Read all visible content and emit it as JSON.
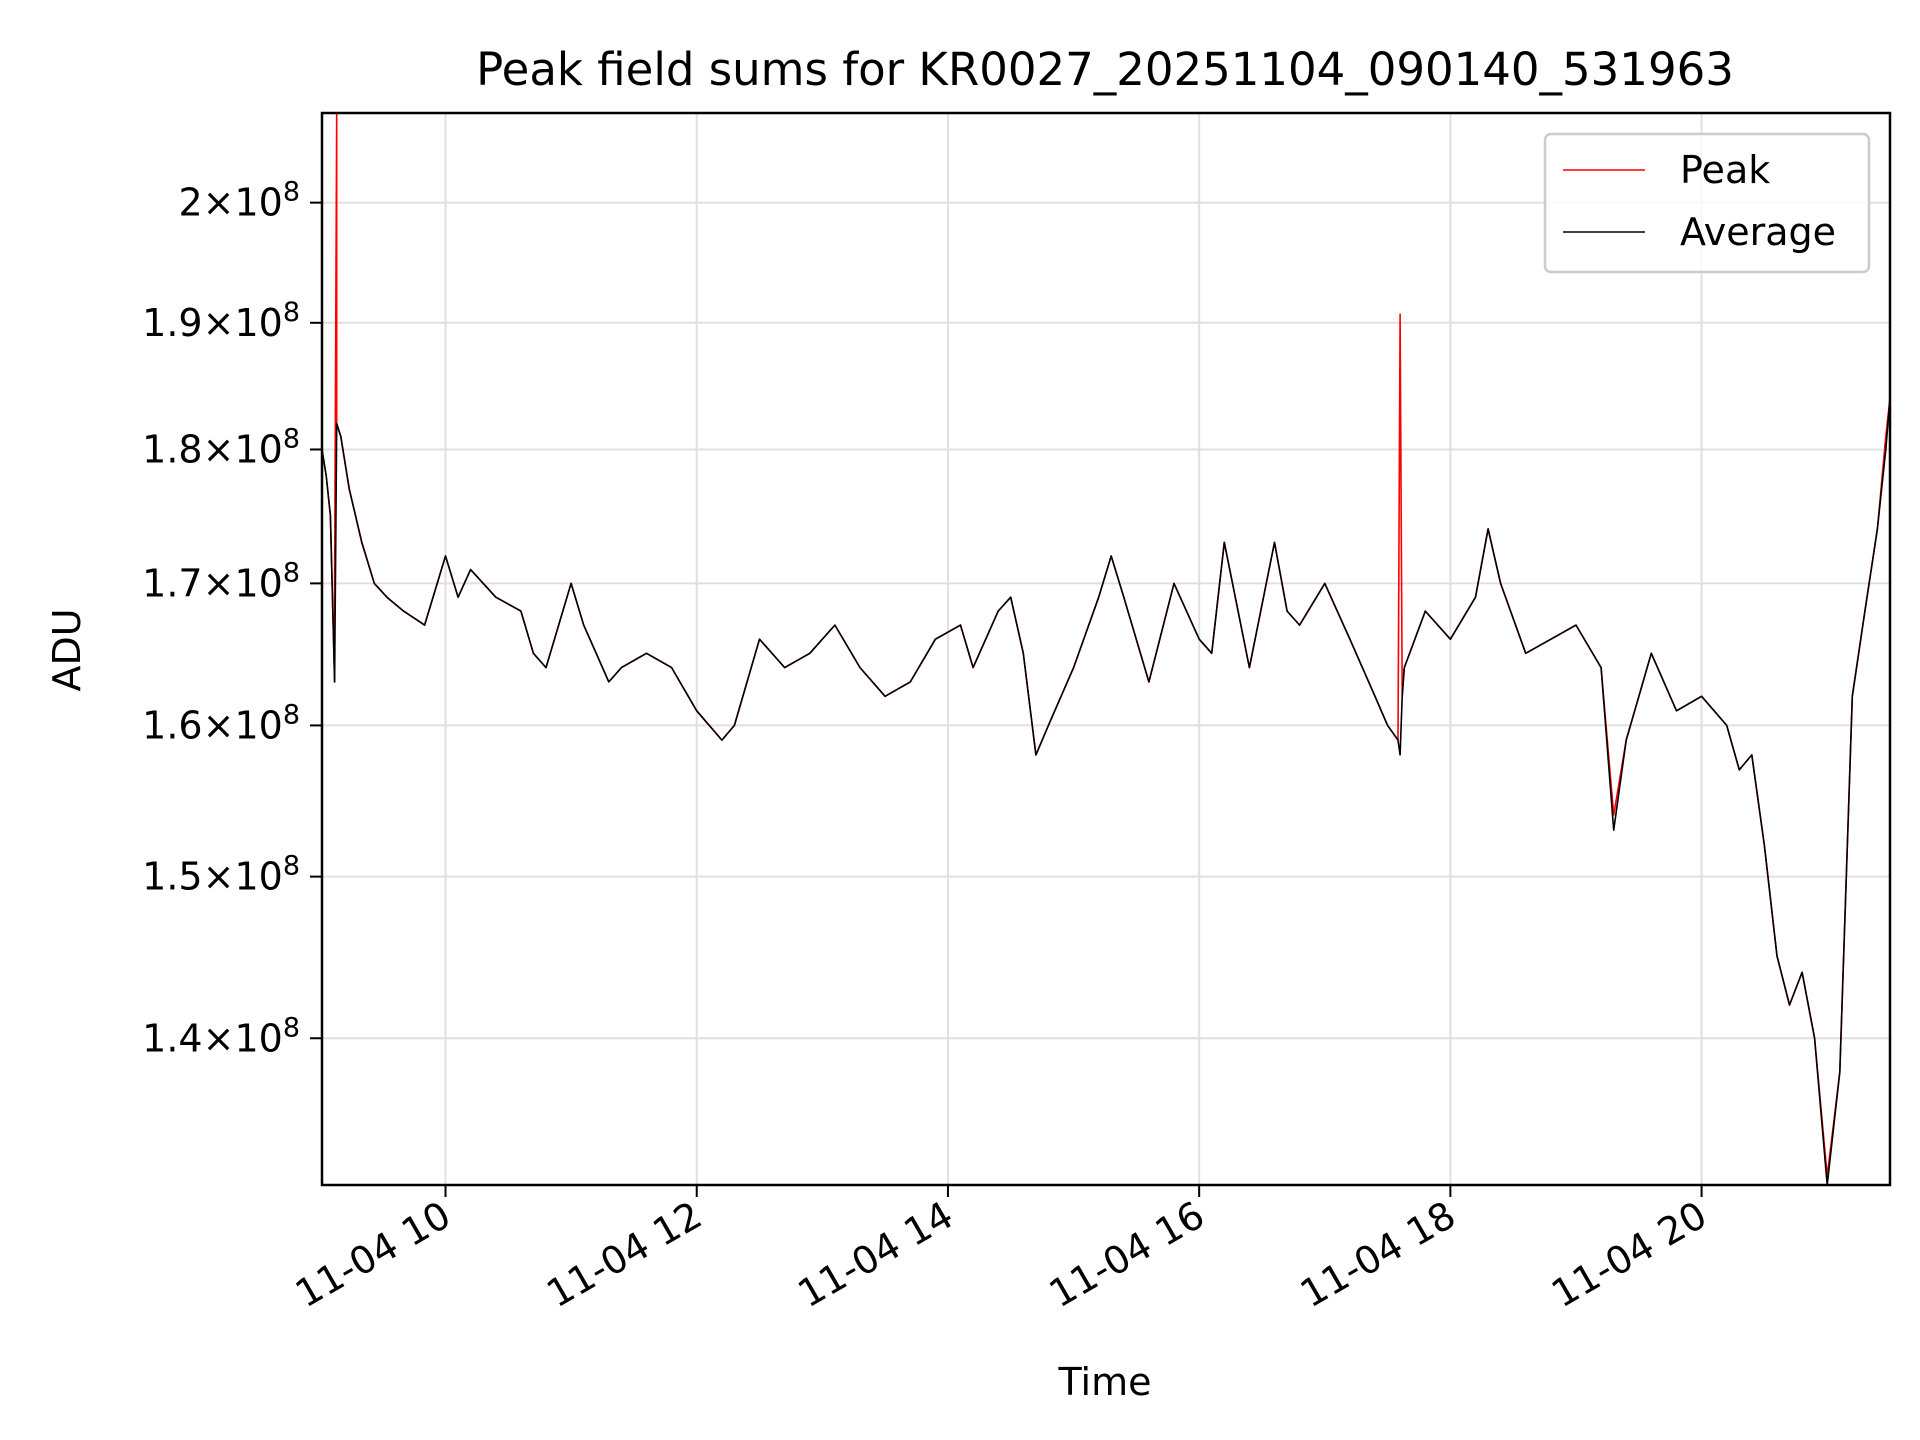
{
  "chart_data": {
    "type": "line",
    "title": "Peak field sums for KR0027_20251104_090140_531963",
    "xlabel": "Time",
    "ylabel": "ADU",
    "xlim": [
      "2025-11-04 09:01",
      "2025-11-04 21:30"
    ],
    "ylim": [
      131500000,
      207800000
    ],
    "yscale": "log",
    "grid": true,
    "legend_position": "top-right",
    "x_ticks": [
      {
        "label": "11-04 10",
        "value": "2025-11-04 10:00"
      },
      {
        "label": "11-04 12",
        "value": "2025-11-04 12:00"
      },
      {
        "label": "11-04 14",
        "value": "2025-11-04 14:00"
      },
      {
        "label": "11-04 16",
        "value": "2025-11-04 16:00"
      },
      {
        "label": "11-04 18",
        "value": "2025-11-04 18:00"
      },
      {
        "label": "11-04 20",
        "value": "2025-11-04 20:00"
      }
    ],
    "y_ticks": [
      {
        "mant": "1.4",
        "exp": "8",
        "value": 140000000
      },
      {
        "mant": "1.5",
        "exp": "8",
        "value": 150000000
      },
      {
        "mant": "1.6",
        "exp": "8",
        "value": 160000000
      },
      {
        "mant": "1.7",
        "exp": "8",
        "value": 170000000
      },
      {
        "mant": "1.8",
        "exp": "8",
        "value": 180000000
      },
      {
        "mant": "1.9",
        "exp": "8",
        "value": 190000000
      },
      {
        "mant": "2",
        "exp": "8",
        "value": 200000000
      }
    ],
    "series": [
      {
        "name": "Peak",
        "color": "#ff0000",
        "x": [
          "09:01",
          "09:03",
          "09:05",
          "09:07",
          "09:07",
          "09:08",
          "09:08",
          "09:10",
          "09:14",
          "09:20",
          "09:26",
          "09:32",
          "09:40",
          "09:50",
          "10:00",
          "10:06",
          "10:12",
          "10:24",
          "10:36",
          "10:42",
          "10:48",
          "11:00",
          "11:06",
          "11:12",
          "11:18",
          "11:24",
          "11:36",
          "11:48",
          "12:00",
          "12:12",
          "12:18",
          "12:30",
          "12:42",
          "12:54",
          "13:06",
          "13:18",
          "13:30",
          "13:42",
          "13:54",
          "14:06",
          "14:12",
          "14:24",
          "14:30",
          "14:36",
          "14:42",
          "14:48",
          "15:00",
          "15:12",
          "15:18",
          "15:24",
          "15:36",
          "15:48",
          "16:00",
          "16:06",
          "16:12",
          "16:24",
          "16:36",
          "16:42",
          "16:48",
          "17:00",
          "17:12",
          "17:24",
          "17:30",
          "17:35",
          "17:36",
          "17:37",
          "17:38",
          "17:48",
          "18:00",
          "18:12",
          "18:18",
          "18:24",
          "18:36",
          "18:48",
          "19:00",
          "19:12",
          "19:18",
          "19:24",
          "19:36",
          "19:48",
          "20:00",
          "20:12",
          "20:18",
          "20:24",
          "20:30",
          "20:36",
          "20:42",
          "20:48",
          "20:54",
          "21:00",
          "21:06",
          "21:12",
          "21:18",
          "21:24",
          "21:28",
          "21:30"
        ],
        "y": [
          180000000,
          178000000,
          175000000,
          163000000,
          170000000,
          207800000,
          182000000,
          181000000,
          177000000,
          173000000,
          170000000,
          169000000,
          168000000,
          167000000,
          172000000,
          169000000,
          171000000,
          169000000,
          168000000,
          165000000,
          164000000,
          170000000,
          167000000,
          165000000,
          163000000,
          164000000,
          165000000,
          164000000,
          161000000,
          159000000,
          160000000,
          166000000,
          164000000,
          165000000,
          167000000,
          164000000,
          162000000,
          163000000,
          166000000,
          167000000,
          164000000,
          168000000,
          169000000,
          165000000,
          158000000,
          160000000,
          164000000,
          169000000,
          172000000,
          169000000,
          163000000,
          170000000,
          166000000,
          165000000,
          173000000,
          164000000,
          173000000,
          168000000,
          167000000,
          170000000,
          166000000,
          162000000,
          160000000,
          159000000,
          190700000,
          162000000,
          164000000,
          168000000,
          166000000,
          169000000,
          174000000,
          170000000,
          165000000,
          166000000,
          167000000,
          164000000,
          154000000,
          159000000,
          165000000,
          161000000,
          162000000,
          160000000,
          157000000,
          158000000,
          152000000,
          145000000,
          142000000,
          144000000,
          140000000,
          132000000,
          138000000,
          162000000,
          168000000,
          174000000,
          181000000,
          184000000
        ]
      },
      {
        "name": "Average",
        "color": "#000000",
        "x": [
          "09:01",
          "09:03",
          "09:05",
          "09:07",
          "09:08",
          "09:10",
          "09:14",
          "09:20",
          "09:26",
          "09:32",
          "09:40",
          "09:50",
          "10:00",
          "10:06",
          "10:12",
          "10:24",
          "10:36",
          "10:42",
          "10:48",
          "11:00",
          "11:06",
          "11:12",
          "11:18",
          "11:24",
          "11:36",
          "11:48",
          "12:00",
          "12:12",
          "12:18",
          "12:30",
          "12:42",
          "12:54",
          "13:06",
          "13:18",
          "13:30",
          "13:42",
          "13:54",
          "14:06",
          "14:12",
          "14:24",
          "14:30",
          "14:36",
          "14:42",
          "14:48",
          "15:00",
          "15:12",
          "15:18",
          "15:24",
          "15:36",
          "15:48",
          "16:00",
          "16:06",
          "16:12",
          "16:24",
          "16:36",
          "16:42",
          "16:48",
          "17:00",
          "17:12",
          "17:24",
          "17:30",
          "17:35",
          "17:36",
          "17:37",
          "17:38",
          "17:48",
          "18:00",
          "18:12",
          "18:18",
          "18:24",
          "18:36",
          "18:48",
          "19:00",
          "19:12",
          "19:18",
          "19:24",
          "19:36",
          "19:48",
          "20:00",
          "20:12",
          "20:18",
          "20:24",
          "20:30",
          "20:36",
          "20:42",
          "20:48",
          "20:54",
          "21:00",
          "21:06",
          "21:12",
          "21:18",
          "21:24",
          "21:28",
          "21:30"
        ],
        "y": [
          180000000,
          178000000,
          175000000,
          163000000,
          182000000,
          181000000,
          177000000,
          173000000,
          170000000,
          169000000,
          168000000,
          167000000,
          172000000,
          169000000,
          171000000,
          169000000,
          168000000,
          165000000,
          164000000,
          170000000,
          167000000,
          165000000,
          163000000,
          164000000,
          165000000,
          164000000,
          161000000,
          159000000,
          160000000,
          166000000,
          164000000,
          165000000,
          167000000,
          164000000,
          162000000,
          163000000,
          166000000,
          167000000,
          164000000,
          168000000,
          169000000,
          165000000,
          158000000,
          160000000,
          164000000,
          169000000,
          172000000,
          169000000,
          163000000,
          170000000,
          166000000,
          165000000,
          173000000,
          164000000,
          173000000,
          168000000,
          167000000,
          170000000,
          166000000,
          162000000,
          160000000,
          159000000,
          158000000,
          162000000,
          164000000,
          168000000,
          166000000,
          169000000,
          174000000,
          170000000,
          165000000,
          166000000,
          167000000,
          164000000,
          153000000,
          159000000,
          165000000,
          161000000,
          162000000,
          160000000,
          157000000,
          158000000,
          152000000,
          145000000,
          142000000,
          144000000,
          140000000,
          131500000,
          138000000,
          162000000,
          168000000,
          174000000,
          180000000,
          184000000
        ]
      }
    ]
  }
}
